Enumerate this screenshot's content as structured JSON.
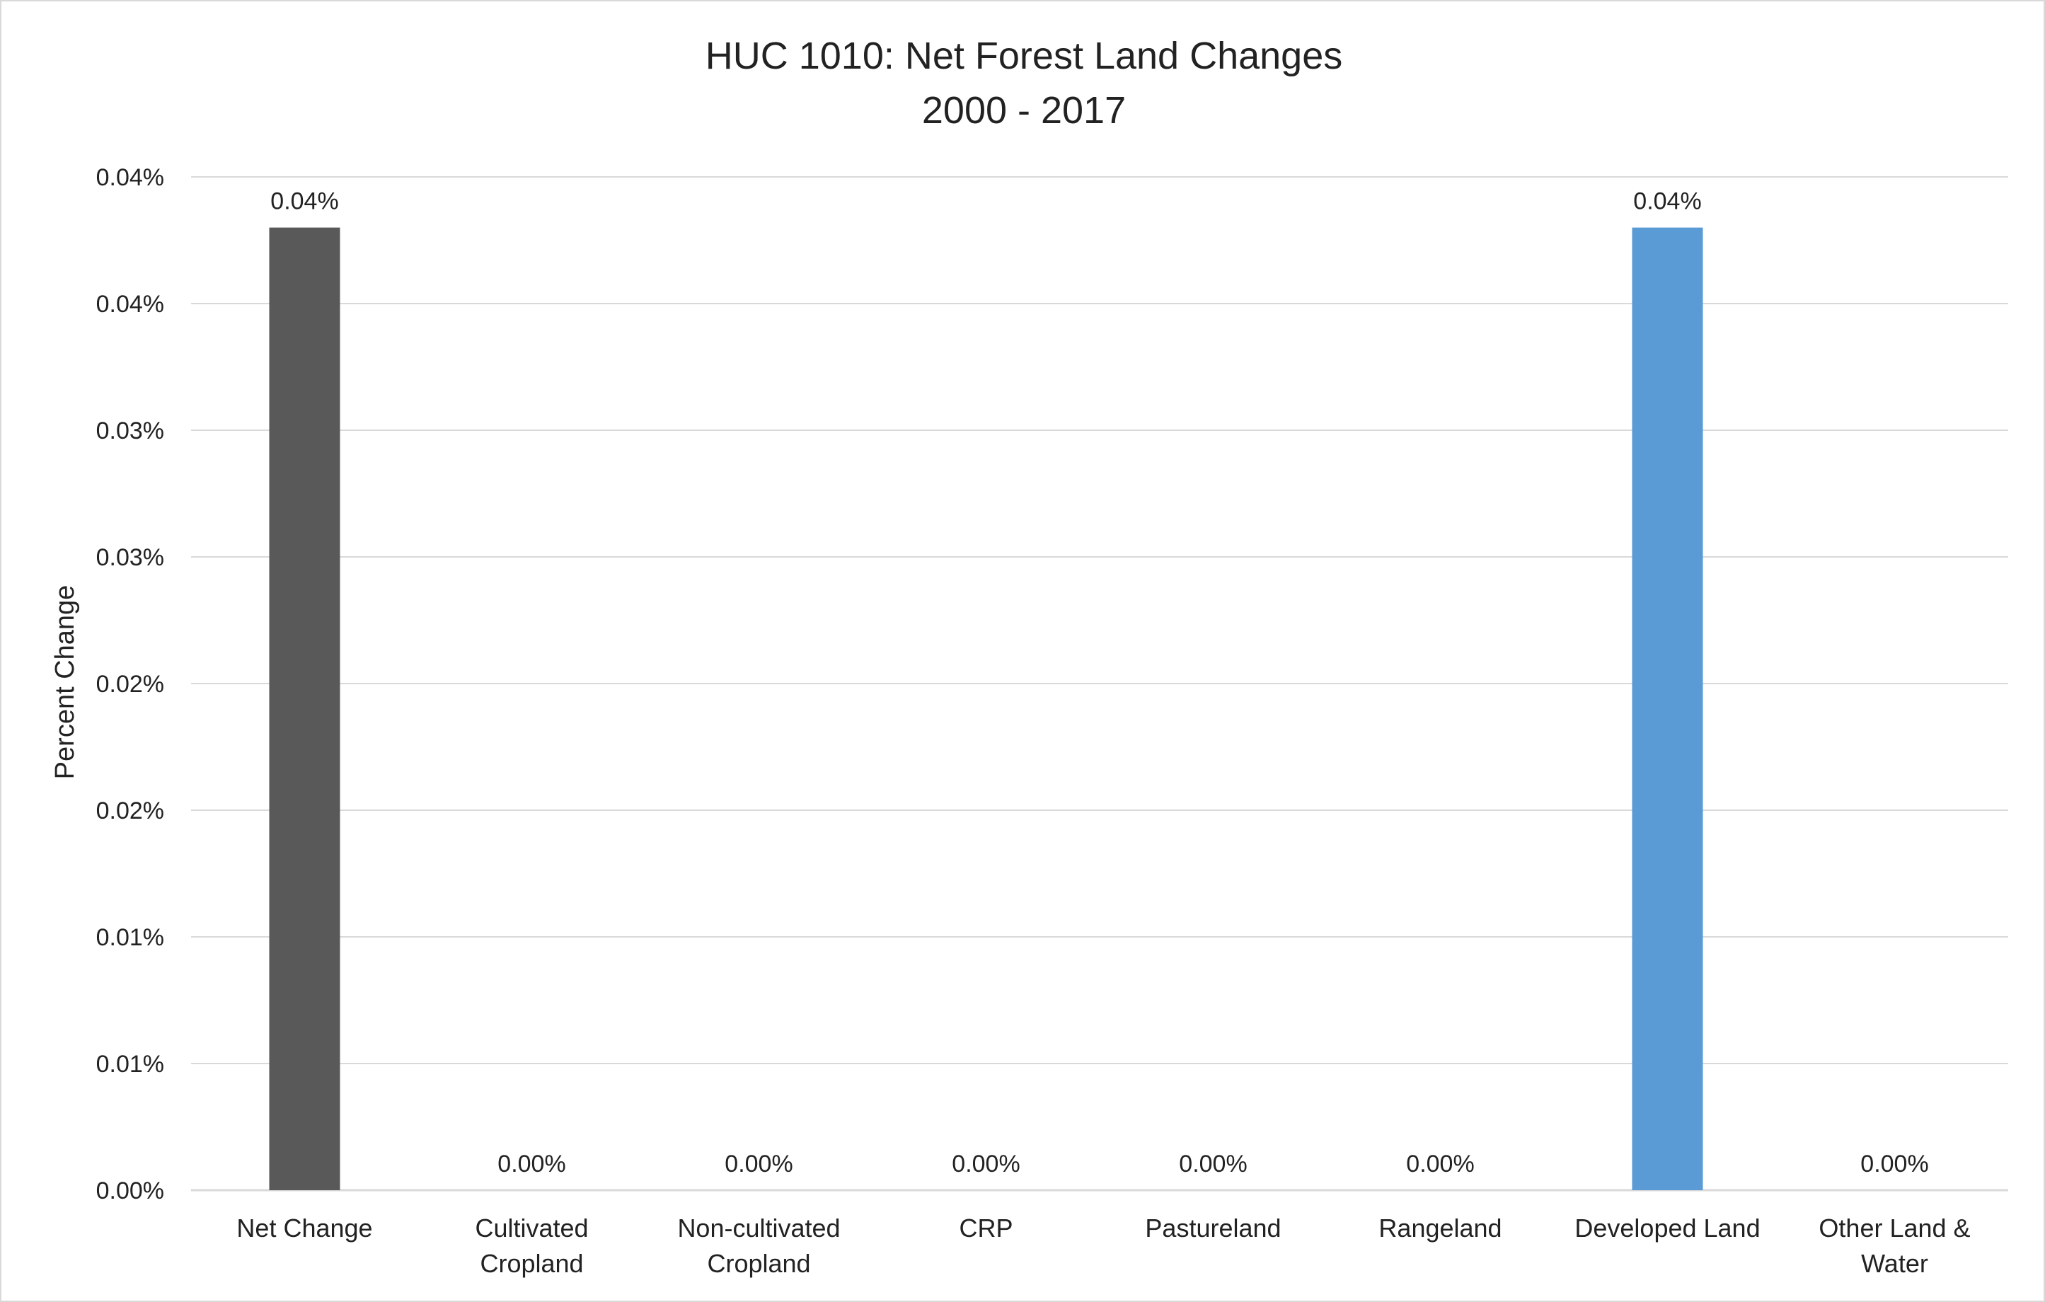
{
  "chart_data": {
    "type": "bar",
    "title": "HUC 1010: Net Forest Land Changes",
    "subtitle": "2000 - 2017",
    "xlabel": "",
    "ylabel": "Percent Change",
    "ylim": [
      0,
      0.04
    ],
    "y_ticks": [
      0,
      0.005,
      0.01,
      0.015,
      0.02,
      0.025,
      0.03,
      0.035,
      0.04
    ],
    "y_tick_labels": [
      "0.00%",
      "0.01%",
      "0.01%",
      "0.02%",
      "0.02%",
      "0.03%",
      "0.03%",
      "0.04%",
      "0.04%"
    ],
    "grid": true,
    "legend": "none",
    "categories": [
      [
        "Net Change"
      ],
      [
        "Cultivated",
        "Cropland"
      ],
      [
        "Non-cultivated",
        "Cropland"
      ],
      [
        "CRP"
      ],
      [
        "Pastureland"
      ],
      [
        "Rangeland"
      ],
      [
        "Developed Land"
      ],
      [
        "Other Land &",
        "Water"
      ]
    ],
    "values": [
      0.038,
      0,
      0,
      0,
      0,
      0,
      0.038,
      0
    ],
    "data_labels": [
      "0.04%",
      "0.00%",
      "0.00%",
      "0.00%",
      "0.00%",
      "0.00%",
      "0.04%",
      "0.00%"
    ],
    "colors": [
      "#595959",
      "#5b9bd5",
      "#5b9bd5",
      "#5b9bd5",
      "#5b9bd5",
      "#5b9bd5",
      "#5b9bd5",
      "#5b9bd5"
    ],
    "gridline_color": "#d9d9d9"
  }
}
